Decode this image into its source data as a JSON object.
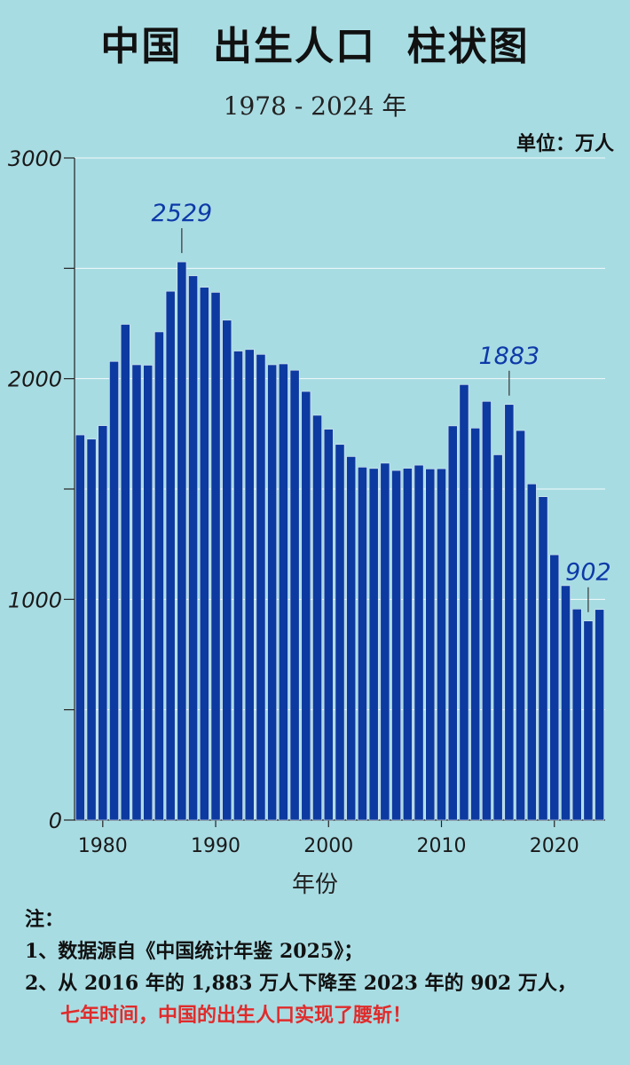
{
  "header": {
    "title": "中国  出生人口  柱状图",
    "subtitle": "1978 - 2024 年",
    "unit": "单位：万人"
  },
  "notes": {
    "heading": "注：",
    "line1": "1、数据源自《中国统计年鉴 2025》；",
    "line2": "2、从 2016 年的 1,883 万人下降至 2023 年的 902 万人，",
    "line3": "七年时间，中国的出生人口实现了腰斩！",
    "highlight_color": "#e02b2b"
  },
  "colors": {
    "background": "#a8dce3",
    "bar": "#0d3aa0",
    "bar_edge": "#dce8f5",
    "annotation": "#0d3aa8",
    "grid": "#ffffff"
  },
  "chart_data": {
    "type": "bar",
    "title": "中国  出生人口  柱状图",
    "subtitle": "1978 - 2024 年",
    "xlabel": "年份",
    "ylabel": "",
    "unit": "单位：万人",
    "ylim": [
      0,
      3000
    ],
    "yticks": [
      0,
      1000,
      2000,
      3000
    ],
    "yticks_minor": [
      500,
      1500,
      2500
    ],
    "ytick_labels": [
      "0",
      "1000",
      "2000",
      "3000"
    ],
    "xticks": [
      1980,
      1990,
      2000,
      2010,
      2020
    ],
    "xtick_labels": [
      "1980",
      "1990",
      "2000",
      "2010",
      "2020"
    ],
    "grid": true,
    "categories": [
      1978,
      1979,
      1980,
      1981,
      1982,
      1983,
      1984,
      1985,
      1986,
      1987,
      1988,
      1989,
      1990,
      1991,
      1992,
      1993,
      1994,
      1995,
      1996,
      1997,
      1998,
      1999,
      2000,
      2001,
      2002,
      2003,
      2004,
      2005,
      2006,
      2007,
      2008,
      2009,
      2010,
      2011,
      2012,
      2013,
      2014,
      2015,
      2016,
      2017,
      2018,
      2019,
      2020,
      2021,
      2022,
      2023,
      2024
    ],
    "values": [
      1745,
      1726,
      1787,
      2078,
      2246,
      2063,
      2061,
      2212,
      2396,
      2529,
      2466,
      2414,
      2391,
      2265,
      2125,
      2132,
      2110,
      2063,
      2067,
      2038,
      1942,
      1834,
      1771,
      1702,
      1647,
      1599,
      1593,
      1617,
      1584,
      1594,
      1608,
      1591,
      1592,
      1786,
      1973,
      1776,
      1897,
      1655,
      1883,
      1765,
      1523,
      1465,
      1202,
      1062,
      956,
      902,
      954
    ],
    "annotations": [
      {
        "x": 1987,
        "y": 2529,
        "label": "2529"
      },
      {
        "x": 2016,
        "y": 1883,
        "label": "1883"
      },
      {
        "x": 2023,
        "y": 902,
        "label": "902"
      }
    ]
  }
}
